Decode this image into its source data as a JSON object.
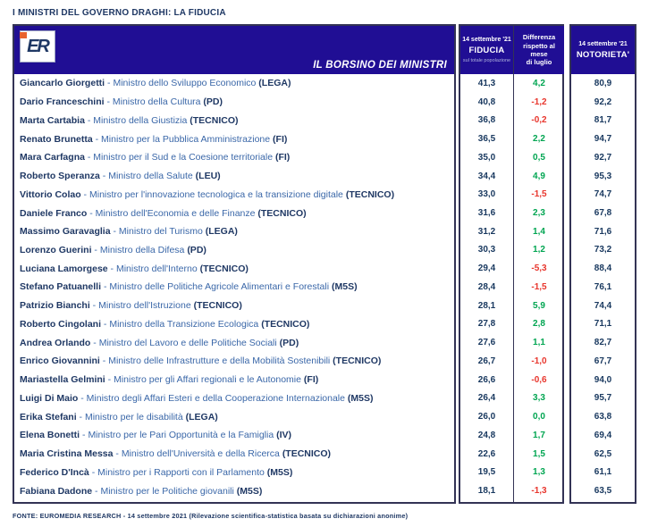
{
  "title": "I MINISTRI DEL GOVERNO DRAGHI: LA FIDUCIA",
  "header": {
    "logo_text": "ER",
    "board_label": "IL BORSINO DEI MINISTRI",
    "fiducia_col": {
      "date": "14 settembre '21",
      "label": "FIDUCIA",
      "sublabel": "sul totale popolazione"
    },
    "differenza_col": {
      "label_line1": "Differenza",
      "label_line2": "rispetto al mese",
      "label_line3": "di luglio"
    },
    "notorieta_col": {
      "date": "14 settembre '21",
      "label": "NOTORIETA'"
    }
  },
  "colors": {
    "header_bg": "#200E94",
    "navy_text": "#1F3864",
    "role_text": "#3A67A8",
    "positive_green": "#00A551",
    "negative_red": "#E8362D",
    "logo_orange": "#E8622D",
    "border": "#333355"
  },
  "rows": [
    {
      "name": "Giancarlo Giorgetti",
      "role": "Ministro dello Sviluppo Economico",
      "party": "(LEGA)",
      "fiducia": "41,3",
      "diff": "4,2",
      "notorieta": "80,9"
    },
    {
      "name": "Dario Franceschini",
      "role": "Ministro della Cultura",
      "party": "(PD)",
      "fiducia": "40,8",
      "diff": "-1,2",
      "notorieta": "92,2"
    },
    {
      "name": "Marta Cartabia",
      "role": "Ministro della Giustizia",
      "party": "(TECNICO)",
      "fiducia": "36,8",
      "diff": "-0,2",
      "notorieta": "81,7"
    },
    {
      "name": "Renato Brunetta",
      "role": "Ministro per la Pubblica Amministrazione",
      "party": "(FI)",
      "fiducia": "36,5",
      "diff": "2,2",
      "notorieta": "94,7"
    },
    {
      "name": "Mara Carfagna",
      "role": "Ministro per il Sud e la Coesione territoriale",
      "party": "(FI)",
      "fiducia": "35,0",
      "diff": "0,5",
      "notorieta": "92,7"
    },
    {
      "name": "Roberto Speranza",
      "role": "Ministro della Salute",
      "party": "(LEU)",
      "fiducia": "34,4",
      "diff": "4,9",
      "notorieta": "95,3"
    },
    {
      "name": "Vittorio Colao",
      "role": "Ministro per l'innovazione tecnologica e la transizione digitale",
      "party": "(TECNICO)",
      "fiducia": "33,0",
      "diff": "-1,5",
      "notorieta": "74,7"
    },
    {
      "name": "Daniele Franco",
      "role": "Ministro dell'Economia e delle Finanze",
      "party": "(TECNICO)",
      "fiducia": "31,6",
      "diff": "2,3",
      "notorieta": "67,8"
    },
    {
      "name": "Massimo Garavaglia",
      "role": "Ministro del Turismo",
      "party": "(LEGA)",
      "fiducia": "31,2",
      "diff": "1,4",
      "notorieta": "71,6"
    },
    {
      "name": "Lorenzo Guerini",
      "role": "Ministro della Difesa",
      "party": "(PD)",
      "fiducia": "30,3",
      "diff": "1,2",
      "notorieta": "73,2"
    },
    {
      "name": "Luciana Lamorgese",
      "role": "Ministro dell'Interno",
      "party": "(TECNICO)",
      "fiducia": "29,4",
      "diff": "-5,3",
      "notorieta": "88,4"
    },
    {
      "name": "Stefano Patuanelli",
      "role": "Ministro delle Politiche Agricole Alimentari e Forestali",
      "party": "(M5S)",
      "fiducia": "28,4",
      "diff": "-1,5",
      "notorieta": "76,1"
    },
    {
      "name": "Patrizio Bianchi",
      "role": "Ministro dell'Istruzione",
      "party": "(TECNICO)",
      "fiducia": "28,1",
      "diff": "5,9",
      "notorieta": "74,4"
    },
    {
      "name": "Roberto Cingolani",
      "role": "Ministro della Transizione Ecologica",
      "party": "(TECNICO)",
      "fiducia": "27,8",
      "diff": "2,8",
      "notorieta": "71,1"
    },
    {
      "name": "Andrea Orlando",
      "role": "Ministro del Lavoro e delle Politiche Sociali",
      "party": "(PD)",
      "fiducia": "27,6",
      "diff": "1,1",
      "notorieta": "82,7"
    },
    {
      "name": "Enrico Giovannini",
      "role": "Ministro delle Infrastrutture e della Mobilità Sostenibili",
      "party": "(TECNICO)",
      "fiducia": "26,7",
      "diff": "-1,0",
      "notorieta": "67,7"
    },
    {
      "name": "Mariastella Gelmini",
      "role": "Ministro per gli Affari regionali e le Autonomie",
      "party": "(FI)",
      "fiducia": "26,6",
      "diff": "-0,6",
      "notorieta": "94,0"
    },
    {
      "name": "Luigi Di Maio",
      "role": "Ministro degli Affari Esteri e della Cooperazione Internazionale",
      "party": "(M5S)",
      "fiducia": "26,4",
      "diff": "3,3",
      "notorieta": "95,7"
    },
    {
      "name": "Erika Stefani",
      "role": "Ministro per le disabilità",
      "party": "(LEGA)",
      "fiducia": "26,0",
      "diff": "0,0",
      "notorieta": "63,8"
    },
    {
      "name": "Elena Bonetti",
      "role": "Ministro per le Pari Opportunità e la Famiglia",
      "party": "(IV)",
      "fiducia": "24,8",
      "diff": "1,7",
      "notorieta": "69,4"
    },
    {
      "name": "Maria Cristina Messa",
      "role": "Ministro dell'Università e della Ricerca",
      "party": "(TECNICO)",
      "fiducia": "22,6",
      "diff": "1,5",
      "notorieta": "62,5"
    },
    {
      "name": "Federico D'Incà",
      "role": "Ministro per i Rapporti con il Parlamento",
      "party": "(M5S)",
      "fiducia": "19,5",
      "diff": "1,3",
      "notorieta": "61,1"
    },
    {
      "name": "Fabiana Dadone",
      "role": "Ministro per le Politiche giovanili",
      "party": "(M5S)",
      "fiducia": "18,1",
      "diff": "-1,3",
      "notorieta": "63,5"
    }
  ],
  "footer": "FONTE: EUROMEDIA RESEARCH - 14 settembre 2021 (Rilevazione scientifica-statistica basata su dichiarazioni anonime)"
}
